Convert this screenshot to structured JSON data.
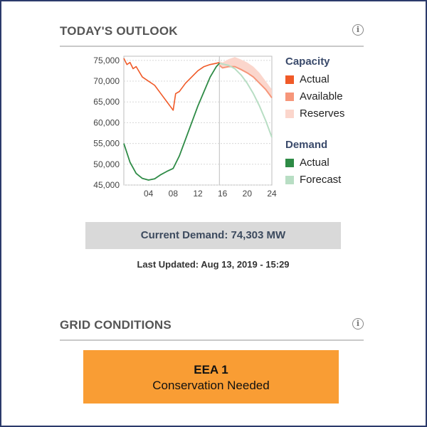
{
  "outlook": {
    "title": "TODAY'S OUTLOOK",
    "info_icon": "info-icon"
  },
  "legend": {
    "capacity_title": "Capacity",
    "capacity_items": [
      {
        "label": "Actual",
        "color": "#f05a28"
      },
      {
        "label": "Available",
        "color": "#f6967a"
      },
      {
        "label": "Reserves",
        "color": "#fbd6cc"
      }
    ],
    "demand_title": "Demand",
    "demand_items": [
      {
        "label": "Actual",
        "color": "#2e8b46"
      },
      {
        "label": "Forecast",
        "color": "#b8dec4"
      }
    ]
  },
  "chart_data": {
    "type": "line",
    "x_range": [
      0,
      24
    ],
    "ylim": [
      45000,
      76000
    ],
    "grid": true,
    "legend_position": "right",
    "current_hour": 15.5,
    "xticks": [
      {
        "v": 4,
        "label": "04"
      },
      {
        "v": 8,
        "label": "08"
      },
      {
        "v": 12,
        "label": "12"
      },
      {
        "v": 16,
        "label": "16"
      },
      {
        "v": 20,
        "label": "20"
      },
      {
        "v": 24,
        "label": "24"
      }
    ],
    "yticks": [
      {
        "v": 45000,
        "label": "45,000"
      },
      {
        "v": 50000,
        "label": "50,000"
      },
      {
        "v": 55000,
        "label": "55,000"
      },
      {
        "v": 60000,
        "label": "60,000"
      },
      {
        "v": 65000,
        "label": "65,000"
      },
      {
        "v": 70000,
        "label": "70,000"
      },
      {
        "v": 75000,
        "label": "75,000"
      }
    ],
    "series": [
      {
        "name": "Capacity Actual",
        "color": "#f05a28",
        "x": [
          0,
          0.5,
          1,
          1.5,
          2,
          3,
          4,
          5,
          6,
          7,
          7.5,
          8,
          8.4,
          9,
          10,
          11,
          12,
          13,
          14,
          15,
          15.5
        ],
        "y": [
          75500,
          74000,
          74500,
          73000,
          73500,
          71000,
          70000,
          69000,
          67000,
          65000,
          64000,
          63000,
          67000,
          67500,
          69500,
          71000,
          72500,
          73500,
          74000,
          74300,
          74500
        ]
      },
      {
        "name": "Demand Actual",
        "color": "#2e8b46",
        "x": [
          0,
          1,
          2,
          3,
          4,
          5,
          6,
          7,
          8,
          9,
          10,
          11,
          12,
          13,
          14,
          15,
          15.5
        ],
        "y": [
          55000,
          50500,
          47800,
          46600,
          46200,
          46500,
          47500,
          48300,
          49000,
          52000,
          56000,
          60000,
          64000,
          67500,
          71000,
          73500,
          74300
        ]
      },
      {
        "name": "Demand Forecast",
        "color": "#b8dec4",
        "x": [
          15.5,
          17,
          18,
          19,
          20,
          21,
          22,
          23,
          24
        ],
        "y": [
          74300,
          73800,
          73000,
          71500,
          69500,
          67000,
          64000,
          60500,
          56500
        ]
      },
      {
        "name": "Available",
        "color": "#f6967a",
        "x": [
          15.5,
          16,
          17,
          18,
          19,
          20,
          21,
          22,
          23,
          24
        ],
        "y": [
          73800,
          73200,
          73500,
          73500,
          72800,
          72000,
          71000,
          69500,
          68000,
          66000
        ]
      },
      {
        "name": "Reserves upper",
        "color": "#fbd6cc",
        "x": [
          15.5,
          16,
          17,
          18,
          19,
          20,
          21,
          22,
          23,
          24
        ],
        "y": [
          74800,
          74500,
          75300,
          75800,
          75200,
          74500,
          73500,
          72000,
          70000,
          68000
        ]
      }
    ]
  },
  "current_demand": "Current Demand: 74,303 MW",
  "last_updated": "Last Updated: Aug 13, 2019 - 15:29",
  "grid_conditions": {
    "title": "GRID CONDITIONS",
    "level": "EEA 1",
    "message": "Conservation Needed",
    "color": "#f99d34"
  }
}
